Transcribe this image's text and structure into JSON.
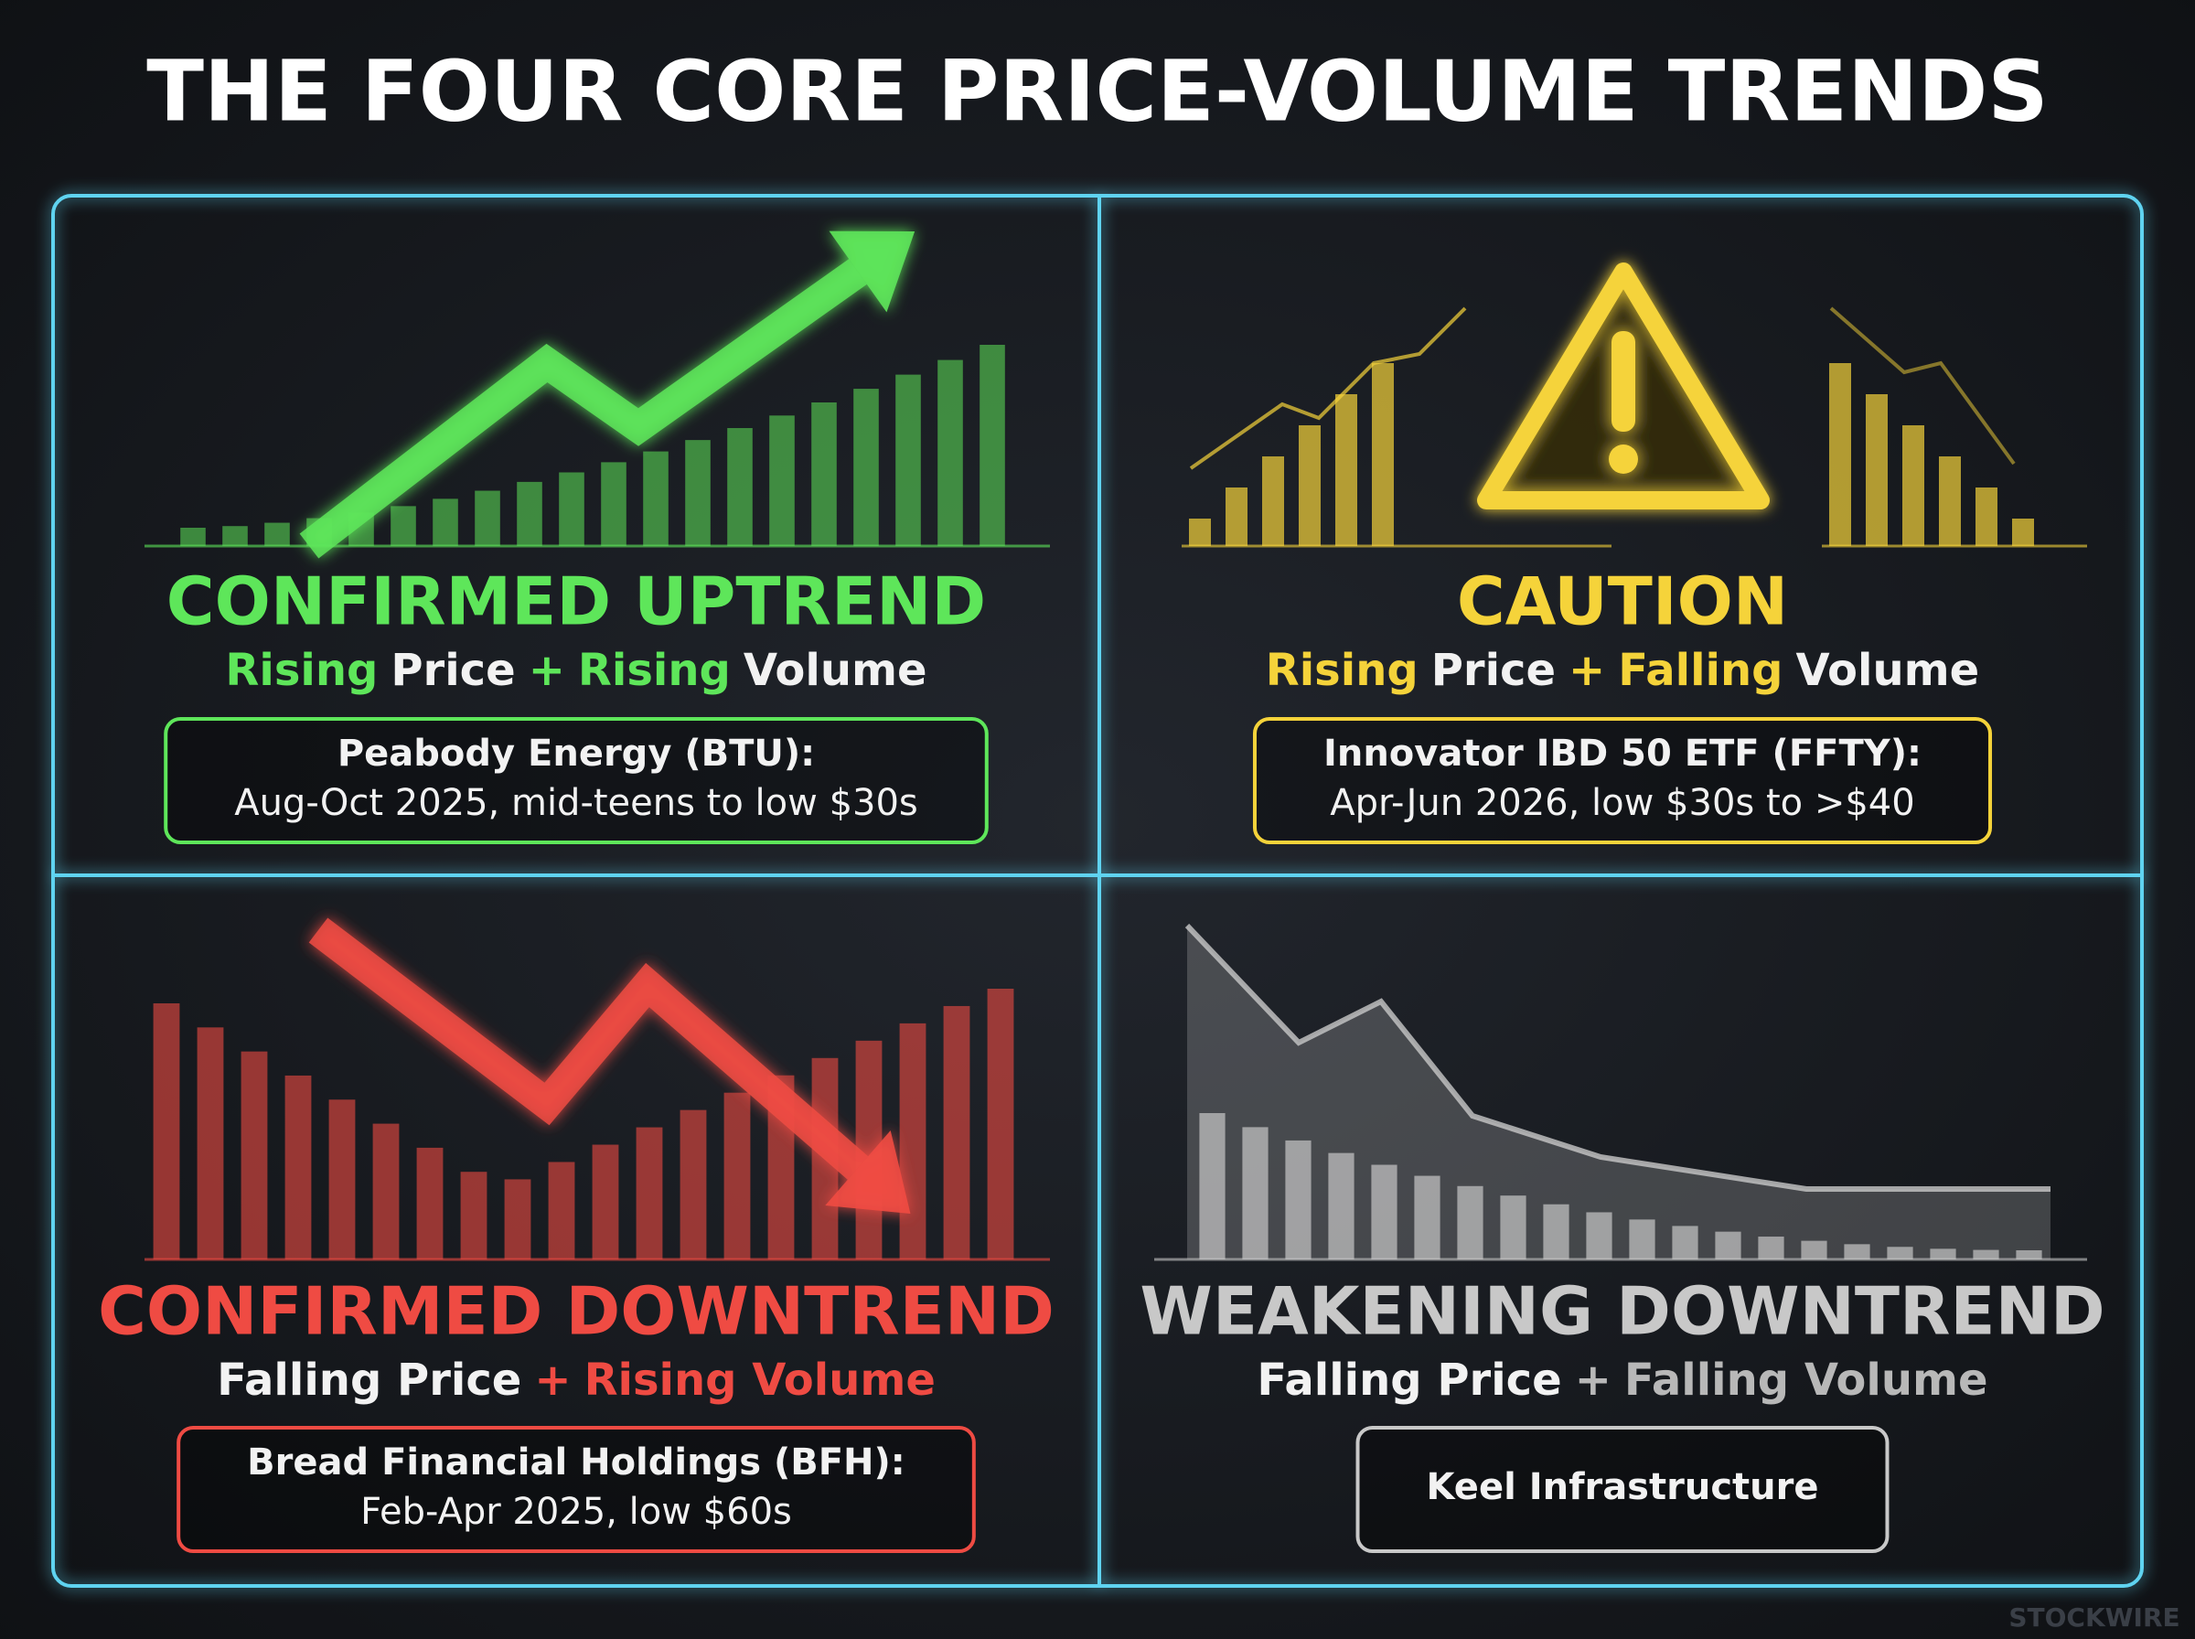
{
  "title": "THE FOUR CORE PRICE-VOLUME TRENDS",
  "quadrants": [
    {
      "heading": "CONFIRMED UPTREND",
      "color": "#5ee65a",
      "subtitle": [
        {
          "text": "Rising",
          "color": "#5ee65a"
        },
        {
          "text": "Price",
          "color": "#f2f2f2"
        },
        {
          "text": "+",
          "color": "#5ee65a"
        },
        {
          "text": "Rising",
          "color": "#5ee65a"
        },
        {
          "text": "Volume",
          "color": "#f2f2f2"
        }
      ],
      "example": [
        "Peabody Energy (BTU):",
        "Aug-Oct 2025, mid-teens to low $30s"
      ]
    },
    {
      "heading": "CAUTION",
      "color": "#f5d33a",
      "subtitle": [
        {
          "text": "Rising",
          "color": "#f5d33a"
        },
        {
          "text": "Price",
          "color": "#f2f2f2"
        },
        {
          "text": "+",
          "color": "#f5d33a"
        },
        {
          "text": "Falling",
          "color": "#f5d33a"
        },
        {
          "text": "Volume",
          "color": "#f2f2f2"
        }
      ],
      "example": [
        "Innovator IBD 50 ETF (FFTY):",
        "Apr-Jun 2026, low $30s to >$40"
      ]
    },
    {
      "heading": "CONFIRMED DOWNTREND",
      "color": "#ef4b43",
      "subtitle": [
        {
          "text": "Falling Price",
          "color": "#f2f2f2"
        },
        {
          "text": "+",
          "color": "#ef4b43"
        },
        {
          "text": "Rising Volume",
          "color": "#ef4b43"
        }
      ],
      "example": [
        "Bread Financial Holdings (BFH):",
        "Feb-Apr 2025, low $60s"
      ]
    },
    {
      "heading": "WEAKENING DOWNTREND",
      "color": "#c8c8c8",
      "subtitle": [
        {
          "text": "Falling Price",
          "color": "#f2f2f2"
        },
        {
          "text": "+",
          "color": "#b8b8b8"
        },
        {
          "text": "Falling Volume",
          "color": "#b8b8b8"
        }
      ],
      "example": [
        "Keel Infrastructure"
      ]
    }
  ],
  "watermark": "STOCKWIRE"
}
